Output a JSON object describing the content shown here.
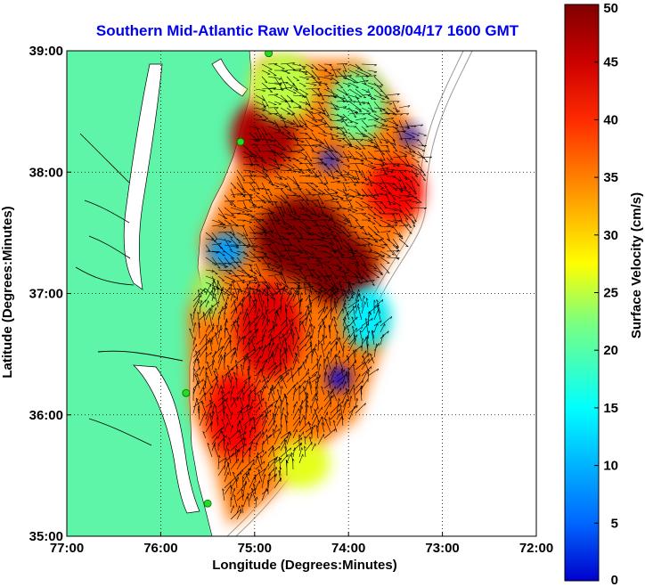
{
  "chart_data": {
    "type": "heatmap",
    "title": "Southern Mid-Atlantic Raw Velocities 2008/04/17 1600 GMT",
    "xlabel": "Longitude (Degrees:Minutes)",
    "ylabel": "Latitude (Degrees:Minutes)",
    "xlim": [
      -77,
      -72
    ],
    "ylim": [
      35,
      39
    ],
    "x_ticks": [
      {
        "value": -77,
        "label": "77:00"
      },
      {
        "value": -76,
        "label": "76:00"
      },
      {
        "value": -75,
        "label": "75:00"
      },
      {
        "value": -74,
        "label": "74:00"
      },
      {
        "value": -73,
        "label": "73:00"
      },
      {
        "value": -72,
        "label": "72:00"
      }
    ],
    "y_ticks": [
      {
        "value": 35,
        "label": "35:00"
      },
      {
        "value": 36,
        "label": "36:00"
      },
      {
        "value": 37,
        "label": "37:00"
      },
      {
        "value": 38,
        "label": "38:00"
      },
      {
        "value": 39,
        "label": "39:00"
      }
    ],
    "grid": true,
    "colorbar": {
      "label": "Surface Velocity (cm/s)",
      "range": [
        0,
        50
      ],
      "ticks": [
        0,
        5,
        10,
        15,
        20,
        25,
        30,
        35,
        40,
        45,
        50
      ],
      "colormap": "jet"
    },
    "land_color": "#5ef5a8",
    "site_marker_color": "#22dd22",
    "radar_sites": [
      {
        "lon": -74.85,
        "lat": 38.98
      },
      {
        "lon": -75.15,
        "lat": 38.25
      },
      {
        "lon": -75.73,
        "lat": 36.18
      },
      {
        "lon": -75.5,
        "lat": 35.27
      }
    ],
    "speed_patches": [
      {
        "lon": -74.5,
        "lat": 37.45,
        "speed": 50,
        "rlon": 0.5,
        "rlat": 0.35
      },
      {
        "lon": -74.1,
        "lat": 37.2,
        "speed": 50,
        "rlon": 0.4,
        "rlat": 0.3
      },
      {
        "lon": -74.9,
        "lat": 38.3,
        "speed": 48,
        "rlon": 0.35,
        "rlat": 0.3
      },
      {
        "lon": -73.5,
        "lat": 37.85,
        "speed": 44,
        "rlon": 0.3,
        "rlat": 0.25
      },
      {
        "lon": -74.85,
        "lat": 36.7,
        "speed": 45,
        "rlon": 0.35,
        "rlat": 0.4
      },
      {
        "lon": -75.2,
        "lat": 36.0,
        "speed": 44,
        "rlon": 0.3,
        "rlat": 0.35
      },
      {
        "lon": -74.7,
        "lat": 38.7,
        "speed": 28,
        "rlon": 0.35,
        "rlat": 0.28
      },
      {
        "lon": -73.9,
        "lat": 38.55,
        "speed": 24,
        "rlon": 0.3,
        "rlat": 0.3
      },
      {
        "lon": -74.2,
        "lat": 38.1,
        "speed": 8,
        "rlon": 0.1,
        "rlat": 0.08
      },
      {
        "lon": -73.35,
        "lat": 38.3,
        "speed": 8,
        "rlon": 0.09,
        "rlat": 0.08
      },
      {
        "lon": -73.8,
        "lat": 36.8,
        "speed": 18,
        "rlon": 0.25,
        "rlat": 0.25
      },
      {
        "lon": -74.1,
        "lat": 36.3,
        "speed": 5,
        "rlon": 0.12,
        "rlat": 0.1
      },
      {
        "lon": -74.5,
        "lat": 35.6,
        "speed": 30,
        "rlon": 0.3,
        "rlat": 0.2
      },
      {
        "lon": -75.3,
        "lat": 37.35,
        "speed": 14,
        "rlon": 0.2,
        "rlat": 0.15
      },
      {
        "lon": -75.5,
        "lat": 37.0,
        "speed": 26,
        "rlon": 0.15,
        "rlat": 0.2
      }
    ]
  }
}
